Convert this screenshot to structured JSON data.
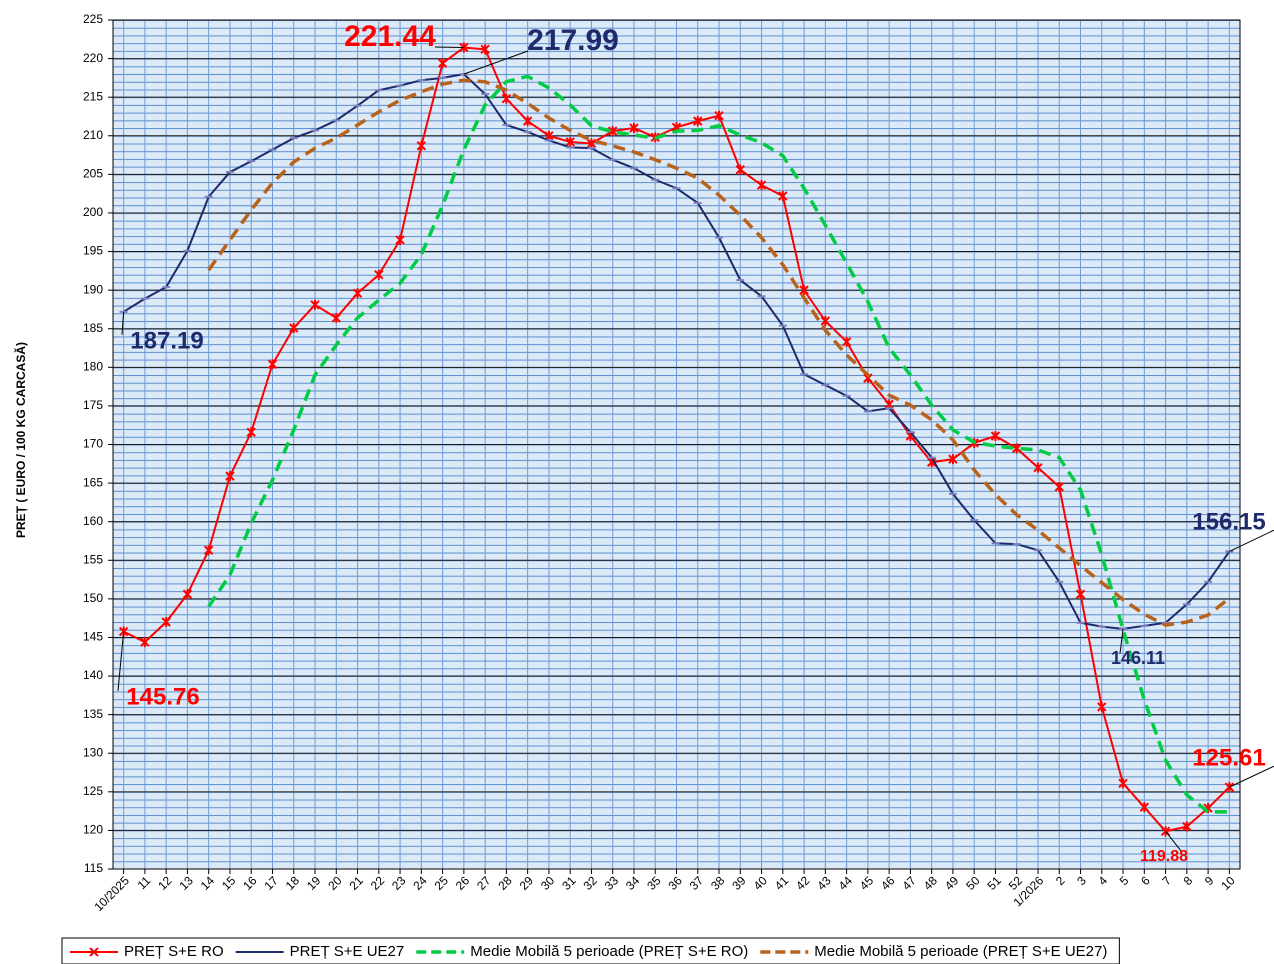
{
  "chart_data": {
    "type": "line",
    "y_label": "PREȚ  ( EURO / 100 KG CARCASĂ)",
    "categories": [
      "10/2025",
      "11",
      "12",
      "13",
      "14",
      "15",
      "16",
      "17",
      "18",
      "19",
      "20",
      "21",
      "22",
      "23",
      "24",
      "25",
      "26",
      "27",
      "28",
      "29",
      "30",
      "31",
      "32",
      "33",
      "34",
      "35",
      "36",
      "37",
      "38",
      "39",
      "40",
      "41",
      "42",
      "43",
      "44",
      "45",
      "46",
      "47",
      "48",
      "49",
      "50",
      "51",
      "52",
      "1/2026",
      "2",
      "3",
      "4",
      "5",
      "6",
      "7",
      "8",
      "9",
      "10"
    ],
    "series": [
      {
        "name": "PREȚ S+E RO",
        "color": "#ff0000",
        "dashed": false,
        "marker": true,
        "values": [
          145.76,
          144.4,
          147.0,
          150.6,
          156.3,
          165.9,
          171.6,
          180.4,
          185.1,
          188.1,
          186.4,
          189.6,
          192.0,
          196.5,
          208.7,
          219.4,
          221.44,
          221.2,
          214.8,
          211.9,
          210.0,
          209.2,
          209.0,
          210.6,
          211.0,
          209.8,
          211.1,
          211.9,
          212.6,
          205.6,
          203.6,
          202.2,
          190.0,
          186.0,
          183.3,
          178.6,
          175.2,
          171.1,
          167.7,
          168.1,
          170.2,
          171.1,
          169.5,
          167.0,
          164.5,
          150.6,
          136.0,
          126.1,
          123.0,
          119.88,
          120.5,
          122.9,
          125.61
        ]
      },
      {
        "name": "PREȚ S+E UE27",
        "color": "#1f2a6b",
        "dashed": false,
        "marker": true,
        "values": [
          187.19,
          188.9,
          190.4,
          195.1,
          202.1,
          205.3,
          206.7,
          208.2,
          209.7,
          210.7,
          212.0,
          213.9,
          215.9,
          216.5,
          217.2,
          217.5,
          217.99,
          215.4,
          211.4,
          210.5,
          209.4,
          208.5,
          208.4,
          206.9,
          205.8,
          204.3,
          203.2,
          201.3,
          196.8,
          191.3,
          189.2,
          185.4,
          179.1,
          177.7,
          176.3,
          174.3,
          174.7,
          171.6,
          168.3,
          163.6,
          160.2,
          157.2,
          157.1,
          156.3,
          152.2,
          146.9,
          146.4,
          146.11,
          146.5,
          146.9,
          149.3,
          152.2,
          156.15
        ]
      },
      {
        "name": "Medie Mobilă 5 perioade  (PREȚ S+E RO)",
        "color": "#00cc44",
        "dashed": true,
        "marker": false,
        "values": [
          null,
          null,
          null,
          null,
          149.0,
          153.1,
          159.8,
          165.4,
          171.9,
          179.0,
          182.9,
          186.4,
          188.7,
          190.9,
          194.6,
          201.0,
          208.2,
          214.0,
          217.0,
          217.7,
          216.2,
          214.0,
          211.3,
          210.5,
          210.1,
          209.7,
          210.6,
          210.7,
          211.3,
          210.1,
          209.1,
          207.4,
          203.2,
          198.4,
          193.5,
          188.5,
          182.5,
          179.0,
          175.1,
          171.9,
          170.3,
          169.8,
          169.5,
          169.3,
          168.3,
          164.1,
          155.7,
          146.0,
          136.9,
          129.1,
          124.6,
          122.4,
          122.4
        ]
      },
      {
        "name": "Medie Mobilă 5 perioade  (PREȚ S+E UE27)",
        "color": "#b8621b",
        "dashed": true,
        "marker": false,
        "values": [
          null,
          null,
          null,
          null,
          192.6,
          196.5,
          200.4,
          203.9,
          206.6,
          208.4,
          209.7,
          211.4,
          213.1,
          214.6,
          215.7,
          216.7,
          217.2,
          217.0,
          215.9,
          214.2,
          212.3,
          210.7,
          209.4,
          208.7,
          207.9,
          206.9,
          205.8,
          204.5,
          202.3,
          199.7,
          196.8,
          193.3,
          189.0,
          184.8,
          181.6,
          179.0,
          176.4,
          175.1,
          173.2,
          170.6,
          166.7,
          163.5,
          160.9,
          158.9,
          156.6,
          154.3,
          152.1,
          149.9,
          148.0,
          146.6,
          147.0,
          147.9,
          150.1
        ]
      }
    ],
    "annotations": [
      {
        "text": "221.44",
        "value": 221.44,
        "category": "26",
        "color": "#ff0000"
      },
      {
        "text": "217.99",
        "value": 217.99,
        "category": "26",
        "color": "#1f2a6b"
      },
      {
        "text": "187.19",
        "value": 187.19,
        "category": "10/2025",
        "color": "#1f2a6b"
      },
      {
        "text": "145.76",
        "value": 145.76,
        "category": "10/2025",
        "color": "#ff0000"
      },
      {
        "text": "146.11",
        "value": 146.11,
        "category": "5",
        "color": "#1f2a6b"
      },
      {
        "text": "156.15",
        "value": 156.15,
        "category": "10",
        "color": "#1f2a6b"
      },
      {
        "text": "125.61",
        "value": 125.61,
        "category": "10",
        "color": "#ff0000"
      },
      {
        "text": "119.88",
        "value": 119.88,
        "category": "7",
        "color": "#ff0000"
      }
    ],
    "ylim": [
      115,
      225
    ],
    "yticks": [
      115,
      120,
      125,
      130,
      135,
      140,
      145,
      150,
      155,
      160,
      165,
      170,
      175,
      180,
      185,
      190,
      195,
      200,
      205,
      210,
      215,
      220,
      225
    ],
    "grid": true,
    "legend": "bottom"
  }
}
